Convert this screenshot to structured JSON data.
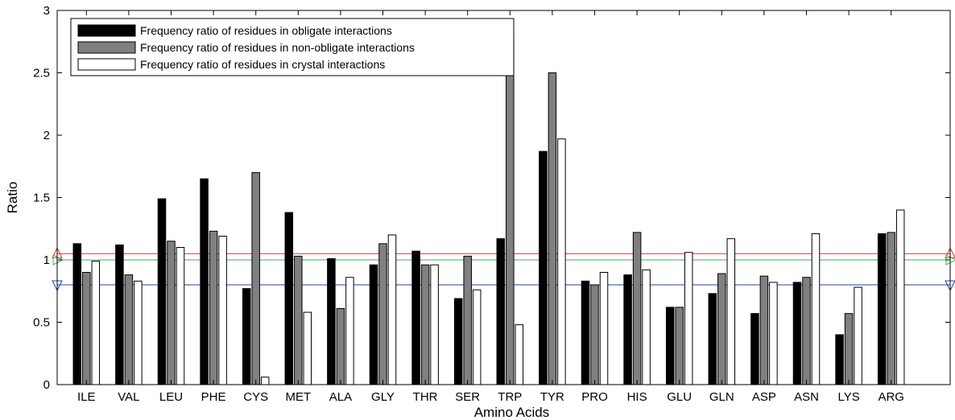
{
  "chart_data": {
    "type": "bar",
    "xlabel": "Amino Acids",
    "ylabel": "Ratio",
    "ylim": [
      0,
      3
    ],
    "yticks": [
      "0",
      "0.5",
      "1",
      "1.5",
      "2",
      "2.5",
      "3"
    ],
    "grid": false,
    "legend_position": "top-left",
    "categories": [
      "ILE",
      "VAL",
      "LEU",
      "PHE",
      "CYS",
      "MET",
      "ALA",
      "GLY",
      "THR",
      "SER",
      "TRP",
      "TYR",
      "PRO",
      "HIS",
      "GLU",
      "GLN",
      "ASP",
      "ASN",
      "LYS",
      "ARG"
    ],
    "series": [
      {
        "name": "Frequency ratio of residues in obligate interactions",
        "color": "#000000",
        "values": [
          1.13,
          1.12,
          1.49,
          1.65,
          0.77,
          1.38,
          1.01,
          0.96,
          1.07,
          0.69,
          1.17,
          1.87,
          0.83,
          0.88,
          0.62,
          0.73,
          0.57,
          0.82,
          0.4,
          1.21
        ]
      },
      {
        "name": "Frequency ratio of residues in non-obligate interactions",
        "color": "#808080",
        "values": [
          0.9,
          0.88,
          1.15,
          1.23,
          1.7,
          1.03,
          0.61,
          1.13,
          0.96,
          1.03,
          2.81,
          2.5,
          0.8,
          1.22,
          0.62,
          0.89,
          0.87,
          0.86,
          0.57,
          1.22
        ]
      },
      {
        "name": "Frequency ratio of residues in crystal interactions",
        "color": "#ffffff",
        "values": [
          0.99,
          0.83,
          1.1,
          1.19,
          0.06,
          0.58,
          0.86,
          1.2,
          0.96,
          0.76,
          0.48,
          1.97,
          0.9,
          0.92,
          1.06,
          1.17,
          0.82,
          1.21,
          0.78,
          1.4
        ]
      }
    ],
    "reference_lines": [
      {
        "value": 1.05,
        "color": "#e0302a",
        "marker": "triangle-up"
      },
      {
        "value": 1.0,
        "color": "#3cb043",
        "marker": "triangle-right"
      },
      {
        "value": 0.8,
        "color": "#2040a0",
        "marker": "triangle-down"
      }
    ]
  }
}
